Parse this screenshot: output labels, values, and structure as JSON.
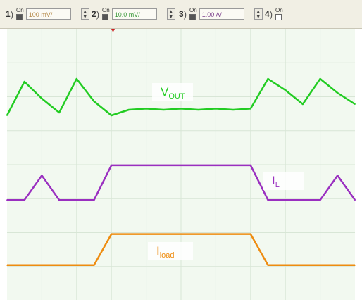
{
  "channels": [
    {
      "num": "1",
      "on_label": "On",
      "checked": true,
      "scale": "100 mV/",
      "color": "#b58a4a"
    },
    {
      "num": "2",
      "on_label": "On",
      "checked": true,
      "scale": "10.0 mV/",
      "color": "#3c9a3c"
    },
    {
      "num": "3",
      "on_label": "On",
      "checked": true,
      "scale": "1.00 A/",
      "color": "#7a3c8a"
    },
    {
      "num": "4",
      "on_label": "On",
      "checked": false,
      "scale": "",
      "color": "#333333"
    }
  ],
  "chart_data": {
    "type": "line",
    "title": "",
    "xlabel": "",
    "ylabel": "",
    "grid": true,
    "annotations": [
      {
        "text_main": "V",
        "text_sub": "OUT",
        "series": "vout"
      },
      {
        "text_main": "I",
        "text_sub": "L",
        "series": "il"
      },
      {
        "text_main": "I",
        "text_sub": "load",
        "series": "iload"
      }
    ],
    "x": [
      0,
      0.05,
      0.1,
      0.15,
      0.2,
      0.25,
      0.3,
      0.35,
      0.4,
      0.45,
      0.5,
      0.55,
      0.6,
      0.65,
      0.7,
      0.75,
      0.8,
      0.85,
      0.9,
      0.95,
      1.0
    ],
    "series": [
      {
        "key": "vout",
        "color": "#22cc22",
        "values": [
          0.3,
          0.9,
          0.6,
          0.35,
          0.95,
          0.55,
          0.3,
          0.4,
          0.42,
          0.4,
          0.42,
          0.4,
          0.42,
          0.4,
          0.42,
          0.95,
          0.75,
          0.5,
          0.95,
          0.7,
          0.5
        ]
      },
      {
        "key": "il",
        "color": "#9a2fc0",
        "values": [
          0.1,
          0.1,
          0.7,
          0.1,
          0.1,
          0.1,
          0.95,
          0.95,
          0.95,
          0.95,
          0.95,
          0.95,
          0.95,
          0.95,
          0.95,
          0.1,
          0.1,
          0.1,
          0.1,
          0.7,
          0.1
        ]
      },
      {
        "key": "iload",
        "color": "#ee8c10",
        "values": [
          0.1,
          0.1,
          0.1,
          0.1,
          0.1,
          0.1,
          0.95,
          0.95,
          0.95,
          0.95,
          0.95,
          0.95,
          0.95,
          0.95,
          0.95,
          0.1,
          0.1,
          0.1,
          0.1,
          0.1,
          0.1
        ]
      }
    ]
  }
}
